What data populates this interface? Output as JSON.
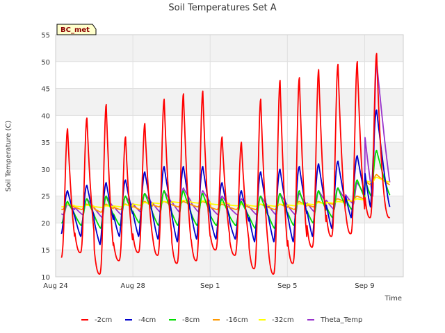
{
  "chart_data": {
    "type": "line",
    "title": "Soil Temperatures Set A",
    "xlabel": "Time",
    "ylabel": "Soil Temperature (C)",
    "site_badge": "BC_met",
    "ylim": [
      10,
      55
    ],
    "yticks": [
      10,
      15,
      20,
      25,
      30,
      35,
      40,
      45,
      50,
      55
    ],
    "xlim": [
      0,
      18
    ],
    "xticks": [
      {
        "label": "Aug 24",
        "day": 0
      },
      {
        "label": "Aug 28",
        "day": 4
      },
      {
        "label": "Sep 1",
        "day": 8
      },
      {
        "label": "Sep 5",
        "day": 12
      },
      {
        "label": "Sep 9",
        "day": 16
      }
    ],
    "x_start_day": 0.3,
    "x_end_day": 17.3,
    "grid": true,
    "legend_placement": "bottom",
    "series": [
      {
        "name": "-2cm",
        "color": "#ff0000",
        "daily_max": [
          37.5,
          39.5,
          42,
          36,
          38.5,
          43,
          44,
          44.5,
          36,
          35,
          43,
          46.5,
          47,
          48.5,
          49.5,
          50,
          51.5
        ],
        "daily_min": [
          13.5,
          14.5,
          10.5,
          13,
          14.5,
          14,
          12.5,
          13,
          15,
          14,
          11.5,
          10.5,
          12.5,
          15.5,
          17.5,
          18,
          21
        ]
      },
      {
        "name": "-4cm",
        "color": "#0000cc",
        "daily_max": [
          26,
          27,
          27.5,
          28,
          29.5,
          30.5,
          30.5,
          30.5,
          27.5,
          26,
          29.5,
          30,
          30.5,
          31,
          31.5,
          32.5,
          41
        ],
        "daily_min": [
          18,
          17.5,
          16,
          17.5,
          17.5,
          17,
          16.5,
          17,
          17,
          17,
          16.5,
          16.5,
          16.5,
          17.5,
          19,
          21,
          23
        ]
      },
      {
        "name": "-8cm",
        "color": "#00dd00",
        "daily_max": [
          24,
          24.5,
          25,
          25,
          25.5,
          26,
          26,
          25.5,
          24.5,
          24,
          25,
          25.5,
          26,
          26,
          26.5,
          28,
          33.5
        ],
        "daily_min": [
          20,
          19.5,
          19,
          19.5,
          20,
          19.5,
          19.5,
          19.5,
          19.5,
          19.5,
          19,
          19,
          19.5,
          20,
          21,
          22.5,
          25
        ]
      },
      {
        "name": "-16cm",
        "color": "#ff9900",
        "daily_max": [
          23.5,
          23.5,
          23.5,
          23.5,
          24,
          24,
          24,
          24,
          23.5,
          23.5,
          23.5,
          23.5,
          24,
          24,
          24.5,
          25,
          29
        ],
        "daily_min": [
          22.5,
          22.5,
          22,
          22.5,
          22.5,
          23,
          23,
          23,
          22.5,
          22.5,
          22.5,
          22.5,
          22.5,
          23,
          23.5,
          24,
          27
        ]
      },
      {
        "name": "-32cm",
        "color": "#ffff00",
        "daily_max": [
          23.5,
          23.3,
          23.2,
          23.4,
          23.8,
          24,
          24.2,
          24.1,
          23.8,
          23.5,
          23.5,
          23.5,
          23.6,
          23.8,
          24,
          24.5,
          28.5
        ],
        "daily_min": [
          23,
          23,
          22.9,
          23,
          23.3,
          23.6,
          23.8,
          23.7,
          23.4,
          23.2,
          23.1,
          23.1,
          23.2,
          23.4,
          23.7,
          24.1,
          27.5
        ]
      },
      {
        "name": "Theta_Temp",
        "color": "#9933cc",
        "daily_max": [
          23.5,
          24.5,
          25,
          25,
          25.5,
          26,
          26.5,
          26,
          25,
          24.5,
          25,
          25.5,
          25.5,
          26,
          26.5,
          27.5,
          50
        ],
        "daily_min": [
          21.5,
          21.5,
          21,
          21.5,
          22,
          22,
          22,
          22,
          21.5,
          21.5,
          21.5,
          21.5,
          21.5,
          22,
          22.5,
          23.5,
          25
        ]
      }
    ]
  }
}
